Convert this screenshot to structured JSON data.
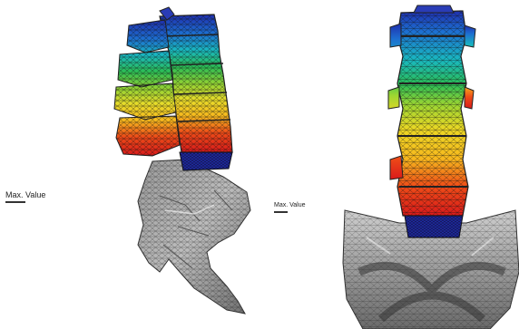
{
  "legend_left": {
    "title": "Max. Value",
    "colors": [
      "#e21b1b",
      "#ee4b18",
      "#f58a17",
      "#f7b81e",
      "#ecd724",
      "#d7e02a",
      "#9dd632",
      "#5dc83a",
      "#2bbd55",
      "#1cb58a",
      "#19b8c0",
      "#1a9ed6",
      "#1d6fd1",
      "#1f44c2",
      "#1f24a8"
    ]
  },
  "legend_right": {
    "title": "Max. Value",
    "colors": [
      "#e21b1b",
      "#ee4b18",
      "#f58a17",
      "#f7b81e",
      "#ecd724",
      "#d7e02a",
      "#9dd632",
      "#5dc83a",
      "#2bbd55",
      "#1cb58a",
      "#19b8c0",
      "#1a9ed6",
      "#1d6fd1",
      "#1f44c2",
      "#1f24a8"
    ]
  }
}
